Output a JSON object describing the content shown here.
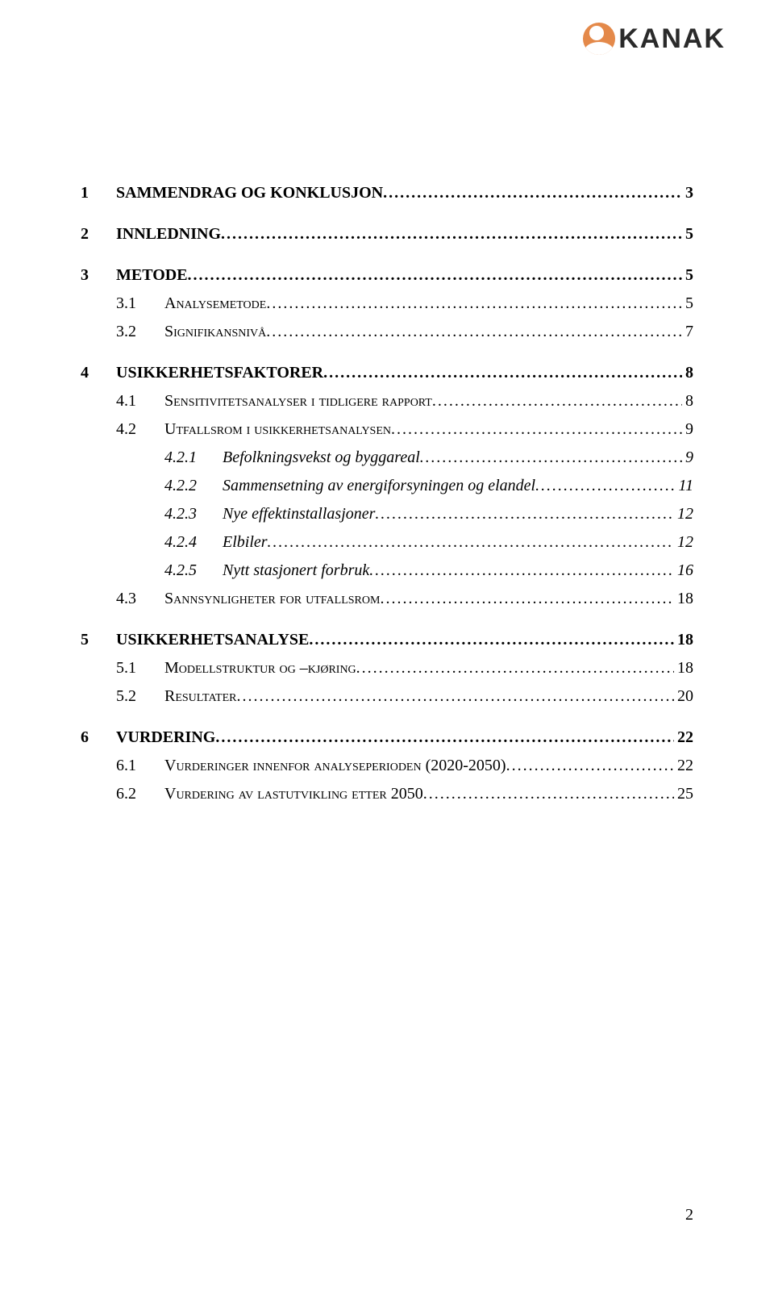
{
  "logo_text": "KANAK",
  "page_number": "2",
  "dots": ".......................................................................................................................................................................................................................................",
  "toc": [
    {
      "level": 1,
      "num": "1",
      "title": "SAMMENDRAG OG KONKLUSJON",
      "page": "3"
    },
    {
      "level": 1,
      "num": "2",
      "title": "INNLEDNING",
      "page": "5"
    },
    {
      "level": 1,
      "num": "3",
      "title": "METODE",
      "page": "5"
    },
    {
      "level": 2,
      "num": "3.1",
      "title": "Analysemetode",
      "page": "5"
    },
    {
      "level": 2,
      "num": "3.2",
      "title": "Signifikansnivå",
      "page": "7"
    },
    {
      "level": 1,
      "num": "4",
      "title": "USIKKERHETSFAKTORER",
      "page": "8"
    },
    {
      "level": 2,
      "num": "4.1",
      "title": "Sensitivitetsanalyser i tidligere rapport",
      "page": "8"
    },
    {
      "level": 2,
      "num": "4.2",
      "title": "Utfallsrom i usikkerhetsanalysen",
      "page": "9"
    },
    {
      "level": 3,
      "num": "4.2.1",
      "title": "Befolkningsvekst og byggareal",
      "page": "9"
    },
    {
      "level": 3,
      "num": "4.2.2",
      "title": "Sammensetning av energiforsyningen og elandel",
      "page": "11"
    },
    {
      "level": 3,
      "num": "4.2.3",
      "title": "Nye effektinstallasjoner",
      "page": "12"
    },
    {
      "level": 3,
      "num": "4.2.4",
      "title": "Elbiler",
      "page": "12"
    },
    {
      "level": 3,
      "num": "4.2.5",
      "title": "Nytt stasjonert forbruk",
      "page": "16"
    },
    {
      "level": 2,
      "num": "4.3",
      "title": "Sannsynligheter for utfallsrom",
      "page": "18"
    },
    {
      "level": 1,
      "num": "5",
      "title": "USIKKERHETSANALYSE",
      "page": "18"
    },
    {
      "level": 2,
      "num": "5.1",
      "title": "Modellstruktur og –kjøring",
      "page": "18"
    },
    {
      "level": 2,
      "num": "5.2",
      "title": "Resultater",
      "page": "20"
    },
    {
      "level": 1,
      "num": "6",
      "title": "VURDERING",
      "page": "22"
    },
    {
      "level": 2,
      "num": "6.1",
      "title": "Vurderinger innenfor analyseperioden (2020-2050)",
      "page": "22"
    },
    {
      "level": 2,
      "num": "6.2",
      "title": "Vurdering av lastutvikling etter 2050",
      "page": "25"
    }
  ]
}
